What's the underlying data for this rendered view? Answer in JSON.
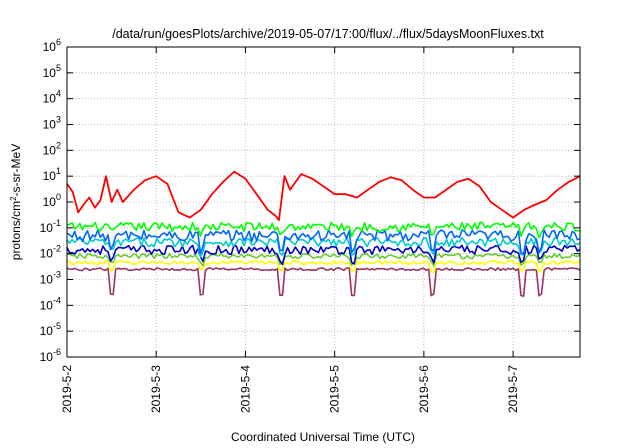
{
  "chart_data": {
    "type": "line",
    "title": "/data/run/goesPlots/archive/2019-05-07/17:00/flux/../flux/5daysMoonFluxes.txt",
    "xlabel": "Coordinated Universal Time (UTC)",
    "ylabel": "protons/cm²-s-sr-MeV",
    "ylabel_parts": {
      "pre": "protons/cm",
      "sup": "2",
      "post": "-s-sr-MeV"
    },
    "y_scale": "log",
    "ylim": [
      1e-06,
      1000000.0
    ],
    "y_ticks": [
      {
        "value": 1e-06,
        "base": "10",
        "exp": "-6"
      },
      {
        "value": 1e-05,
        "base": "10",
        "exp": "-5"
      },
      {
        "value": 0.0001,
        "base": "10",
        "exp": "-4"
      },
      {
        "value": 0.001,
        "base": "10",
        "exp": "-3"
      },
      {
        "value": 0.01,
        "base": "10",
        "exp": "-2"
      },
      {
        "value": 0.1,
        "base": "10",
        "exp": "-1"
      },
      {
        "value": 1,
        "base": "10",
        "exp": "0"
      },
      {
        "value": 10,
        "base": "10",
        "exp": "1"
      },
      {
        "value": 100,
        "base": "10",
        "exp": "2"
      },
      {
        "value": 1000,
        "base": "10",
        "exp": "3"
      },
      {
        "value": 10000,
        "base": "10",
        "exp": "4"
      },
      {
        "value": 100000,
        "base": "10",
        "exp": "5"
      },
      {
        "value": 1000000,
        "base": "10",
        "exp": "6"
      }
    ],
    "xlim": [
      "2019-05-02T00:00",
      "2019-05-07T18:00"
    ],
    "x_ticks": [
      {
        "value": "2019-05-02T00:00",
        "label": "2019-5-2"
      },
      {
        "value": "2019-05-03T00:00",
        "label": "2019-5-3"
      },
      {
        "value": "2019-05-04T00:00",
        "label": "2019-5-4"
      },
      {
        "value": "2019-05-05T00:00",
        "label": "2019-5-5"
      },
      {
        "value": "2019-05-06T00:00",
        "label": "2019-5-6"
      },
      {
        "value": "2019-05-07T00:00",
        "label": "2019-5-7"
      }
    ],
    "grid": true,
    "series": [
      {
        "color": "#ff0000",
        "x": [
          "2019-05-02T00:00",
          "2019-05-02T01:30",
          "2019-05-02T03:00",
          "2019-05-02T04:30",
          "2019-05-02T06:00",
          "2019-05-02T07:30",
          "2019-05-02T09:00",
          "2019-05-02T10:30",
          "2019-05-02T12:00",
          "2019-05-02T13:30",
          "2019-05-02T15:00",
          "2019-05-02T18:00",
          "2019-05-02T21:00",
          "2019-05-03T00:00",
          "2019-05-03T03:00",
          "2019-05-03T06:00",
          "2019-05-03T09:00",
          "2019-05-03T12:00",
          "2019-05-03T15:00",
          "2019-05-03T18:00",
          "2019-05-03T21:00",
          "2019-05-04T00:00",
          "2019-05-04T03:00",
          "2019-05-04T06:00",
          "2019-05-04T08:00",
          "2019-05-04T09:00",
          "2019-05-04T10:30",
          "2019-05-04T12:00",
          "2019-05-04T15:00",
          "2019-05-04T18:00",
          "2019-05-04T21:00",
          "2019-05-05T00:00",
          "2019-05-05T03:00",
          "2019-05-05T06:00",
          "2019-05-05T09:00",
          "2019-05-05T12:00",
          "2019-05-05T15:00",
          "2019-05-05T18:00",
          "2019-05-05T21:00",
          "2019-05-06T00:00",
          "2019-05-06T03:00",
          "2019-05-06T06:00",
          "2019-05-06T09:00",
          "2019-05-06T12:00",
          "2019-05-06T15:00",
          "2019-05-06T18:00",
          "2019-05-06T21:00",
          "2019-05-07T00:00",
          "2019-05-07T03:00",
          "2019-05-07T06:00",
          "2019-05-07T09:00",
          "2019-05-07T12:00",
          "2019-05-07T15:00",
          "2019-05-07T18:00"
        ],
        "values": [
          5,
          2.5,
          0.4,
          0.8,
          1.5,
          0.6,
          1.2,
          10,
          1.0,
          3,
          1.0,
          3,
          7,
          10,
          5,
          0.4,
          0.25,
          0.5,
          2,
          6,
          15,
          8,
          2,
          0.5,
          0.3,
          0.2,
          10,
          3,
          12,
          8,
          4,
          2,
          2,
          1.5,
          3,
          6,
          9,
          7,
          3,
          1.5,
          1.5,
          3,
          6,
          8,
          4,
          1,
          0.5,
          0.25,
          0.5,
          0.8,
          1.2,
          3,
          6,
          10
        ]
      },
      {
        "color": "#00ff00",
        "base": 0.11,
        "amp": 0.35,
        "dips": 0.55
      },
      {
        "color": "#0066ff",
        "base": 0.05,
        "amp": 0.45,
        "dips": 0.3
      },
      {
        "color": "#00cccc",
        "base": 0.028,
        "amp": 0.35,
        "dips": 0.4
      },
      {
        "color": "#0000cc",
        "base": 0.014,
        "amp": 0.35,
        "dips": 0.4
      },
      {
        "color": "#66cc33",
        "base": 0.008,
        "amp": 0.2,
        "dips": 0.5
      },
      {
        "color": "#ffff00",
        "base": 0.0045,
        "amp": 0.15,
        "dips": 0.5
      },
      {
        "color": "#993366",
        "base": 0.0025,
        "amp": 0.1,
        "dips": 0.1
      }
    ]
  }
}
